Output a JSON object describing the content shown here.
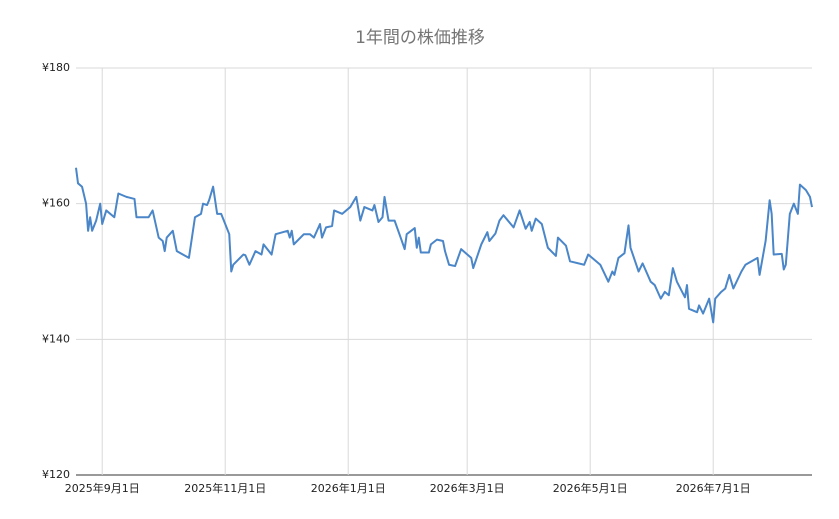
{
  "chart_data": {
    "type": "line",
    "title": "1年間の株価推移",
    "x": [
      "2025-08-19",
      "2025-08-20",
      "2025-08-22",
      "2025-08-24",
      "2025-08-25",
      "2025-08-26",
      "2025-08-27",
      "2025-08-29",
      "2025-08-31",
      "2025-09-01",
      "2025-09-03",
      "2025-09-07",
      "2025-09-09",
      "2025-09-13",
      "2025-09-17",
      "2025-09-18",
      "2025-09-24",
      "2025-09-26",
      "2025-09-29",
      "2025-10-01",
      "2025-10-02",
      "2025-10-03",
      "2025-10-06",
      "2025-10-08",
      "2025-10-14",
      "2025-10-15",
      "2025-10-17",
      "2025-10-20",
      "2025-10-21",
      "2025-10-23",
      "2025-10-24",
      "2025-10-26",
      "2025-10-28",
      "2025-10-30",
      "2025-11-01",
      "2025-11-03",
      "2025-11-04",
      "2025-11-05",
      "2025-11-10",
      "2025-11-11",
      "2025-11-13",
      "2025-11-16",
      "2025-11-19",
      "2025-11-20",
      "2025-11-24",
      "2025-11-26",
      "2025-12-02",
      "2025-12-03",
      "2025-12-04",
      "2025-12-05",
      "2025-12-10",
      "2025-12-13",
      "2025-12-15",
      "2025-12-18",
      "2025-12-19",
      "2025-12-21",
      "2025-12-24",
      "2025-12-25",
      "2025-12-29",
      "2026-01-02",
      "2026-01-05",
      "2026-01-07",
      "2026-01-09",
      "2026-01-13",
      "2026-01-14",
      "2026-01-16",
      "2026-01-18",
      "2026-01-19",
      "2026-01-21",
      "2026-01-24",
      "2026-01-27",
      "2026-01-29",
      "2026-01-30",
      "2026-02-03",
      "2026-02-04",
      "2026-02-05",
      "2026-02-06",
      "2026-02-10",
      "2026-02-11",
      "2026-02-14",
      "2026-02-17",
      "2026-02-18",
      "2026-02-20",
      "2026-02-23",
      "2026-02-26",
      "2026-03-03",
      "2026-03-04",
      "2026-03-08",
      "2026-03-11",
      "2026-03-12",
      "2026-03-15",
      "2026-03-17",
      "2026-03-19",
      "2026-03-24",
      "2026-03-27",
      "2026-03-30",
      "2026-04-01",
      "2026-04-02",
      "2026-04-04",
      "2026-04-07",
      "2026-04-10",
      "2026-04-14",
      "2026-04-15",
      "2026-04-19",
      "2026-04-21",
      "2026-04-28",
      "2026-04-30",
      "2026-05-06",
      "2026-05-10",
      "2026-05-12",
      "2026-05-13",
      "2026-05-15",
      "2026-05-18",
      "2026-05-20",
      "2026-05-21",
      "2026-05-25",
      "2026-05-27",
      "2026-05-31",
      "2026-06-02",
      "2026-06-05",
      "2026-06-07",
      "2026-06-09",
      "2026-06-11",
      "2026-06-13",
      "2026-06-17",
      "2026-06-18",
      "2026-06-19",
      "2026-06-23",
      "2026-06-24",
      "2026-06-26",
      "2026-06-29",
      "2026-07-01",
      "2026-07-02",
      "2026-07-05",
      "2026-07-07",
      "2026-07-09",
      "2026-07-11",
      "2026-07-15",
      "2026-07-17",
      "2026-07-23",
      "2026-07-24",
      "2026-07-27",
      "2026-07-29",
      "2026-07-30",
      "2026-07-31",
      "2026-08-04",
      "2026-08-05",
      "2026-08-06",
      "2026-08-08",
      "2026-08-10",
      "2026-08-12",
      "2026-08-13",
      "2026-08-16",
      "2026-08-18",
      "2026-08-19"
    ],
    "values": [
      165.3,
      163,
      162.5,
      160,
      156,
      158,
      156,
      157.5,
      160,
      157,
      159,
      158,
      161.5,
      161,
      160.7,
      158,
      158,
      159,
      155,
      154.5,
      153,
      155,
      156,
      153,
      152,
      154,
      158,
      158.5,
      160,
      159.8,
      160.5,
      162.5,
      158.5,
      158.5,
      157,
      155.5,
      150,
      151,
      152.5,
      152.4,
      151,
      153,
      152.5,
      154,
      152.5,
      155.5,
      156,
      155,
      156,
      154,
      155.5,
      155.5,
      155,
      157,
      155,
      156.5,
      156.7,
      159,
      158.5,
      159.5,
      161,
      157.5,
      159.5,
      159,
      159.8,
      157.3,
      158,
      161,
      157.5,
      157.5,
      155,
      153.3,
      155.5,
      156.4,
      153.5,
      155,
      152.8,
      152.8,
      154,
      154.7,
      154.5,
      153,
      151,
      150.8,
      153.3,
      152,
      150.5,
      154,
      155.8,
      154.5,
      155.6,
      157.5,
      158.3,
      156.5,
      159,
      156.3,
      157.3,
      156,
      157.8,
      157,
      153.5,
      152.3,
      155,
      153.8,
      151.5,
      151,
      152.5,
      151,
      148.5,
      150,
      149.5,
      152,
      152.7,
      156.8,
      153.5,
      150,
      151.2,
      148.5,
      148,
      146,
      147,
      146.5,
      150.5,
      148.5,
      146.2,
      148,
      144.5,
      144,
      145,
      143.8,
      146,
      142.5,
      146,
      147,
      147.5,
      149.5,
      147.5,
      150,
      151,
      152,
      149.5,
      154.5,
      160.5,
      158.5,
      152.5,
      152.6,
      150.3,
      151,
      158.5,
      160,
      158.5,
      162.8,
      162,
      161,
      159.5
    ],
    "color": "#4a86c8",
    "xlim": [
      "2025-08-19",
      "2026-08-19"
    ],
    "xticks": [
      {
        "value": "2025-09-01",
        "label": "2025年9月1日"
      },
      {
        "value": "2025-11-01",
        "label": "2025年11月1日"
      },
      {
        "value": "2026-01-01",
        "label": "2026年1月1日"
      },
      {
        "value": "2026-03-01",
        "label": "2026年3月1日"
      },
      {
        "value": "2026-05-01",
        "label": "2026年5月1日"
      },
      {
        "value": "2026-07-01",
        "label": "2026年7月1日"
      }
    ],
    "ylim": [
      120,
      180
    ],
    "yticks": [
      {
        "value": 120,
        "label": "¥120"
      },
      {
        "value": 140,
        "label": "¥140"
      },
      {
        "value": 160,
        "label": "¥160"
      },
      {
        "value": 180,
        "label": "¥180"
      }
    ],
    "grid": true
  }
}
